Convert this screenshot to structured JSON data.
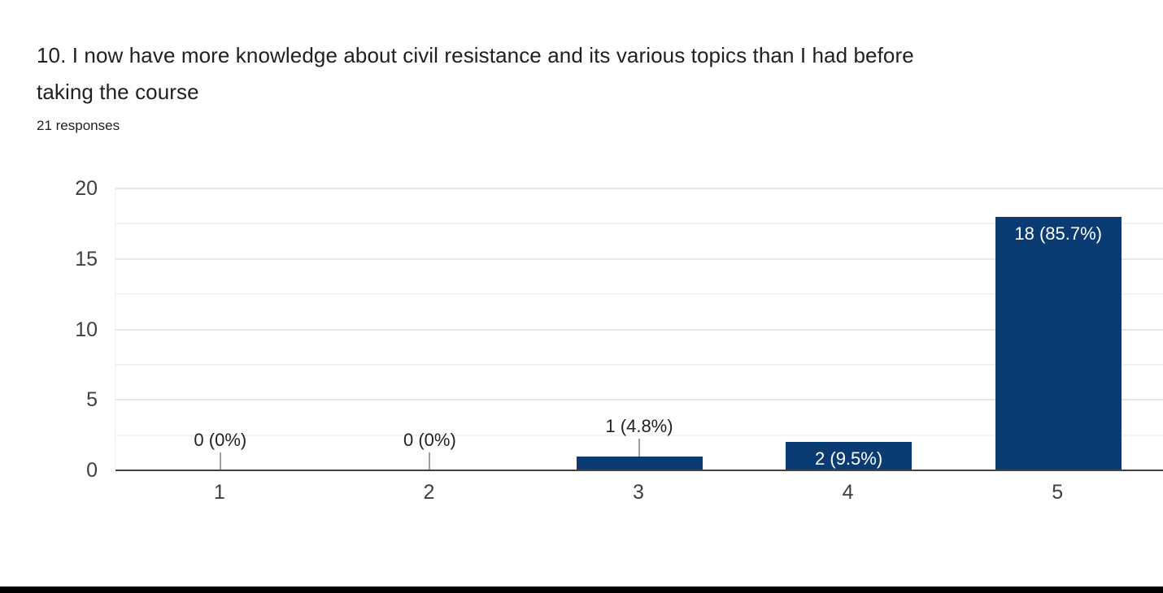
{
  "header": {
    "title_lines": {
      "0": "10. I now have more knowledge about civil resistance and its various topics than I had before",
      "1": "taking the course"
    },
    "responses_count": "21 responses"
  },
  "chart_data": {
    "type": "bar",
    "title": "10. I now have more knowledge about civil resistance and its various topics than I had before taking the course",
    "subtitle": "21 responses",
    "total_responses": 21,
    "categories": [
      "1",
      "2",
      "3",
      "4",
      "5"
    ],
    "values": [
      0,
      0,
      1,
      2,
      18
    ],
    "data_labels": [
      "0 (0%)",
      "0 (0%)",
      "1 (4.8%)",
      "2 (9.5%)",
      "18 (85.7%)"
    ],
    "label_placement": [
      "axis",
      "axis",
      "above",
      "inside",
      "inside"
    ],
    "xlabel": "",
    "ylabel": "",
    "ylim": [
      0,
      20
    ],
    "yticks": [
      0,
      5,
      10,
      15,
      20
    ],
    "minor_gridline_step": 2.5,
    "grid": "horizontal",
    "legend": "none"
  },
  "colors": {
    "background": "#ffffff",
    "bar": "#0b3b73",
    "title_text": "#202124",
    "axis_text": "#3c4043",
    "data_label_outside": "#212121",
    "data_label_inside": "#ffffff",
    "gridline_major": "#e8e8e8",
    "gridline_minor": "#f3f3f3",
    "baseline": "#424242",
    "leader_line": "#9e9e9e",
    "bottom_bar": "#000000"
  }
}
